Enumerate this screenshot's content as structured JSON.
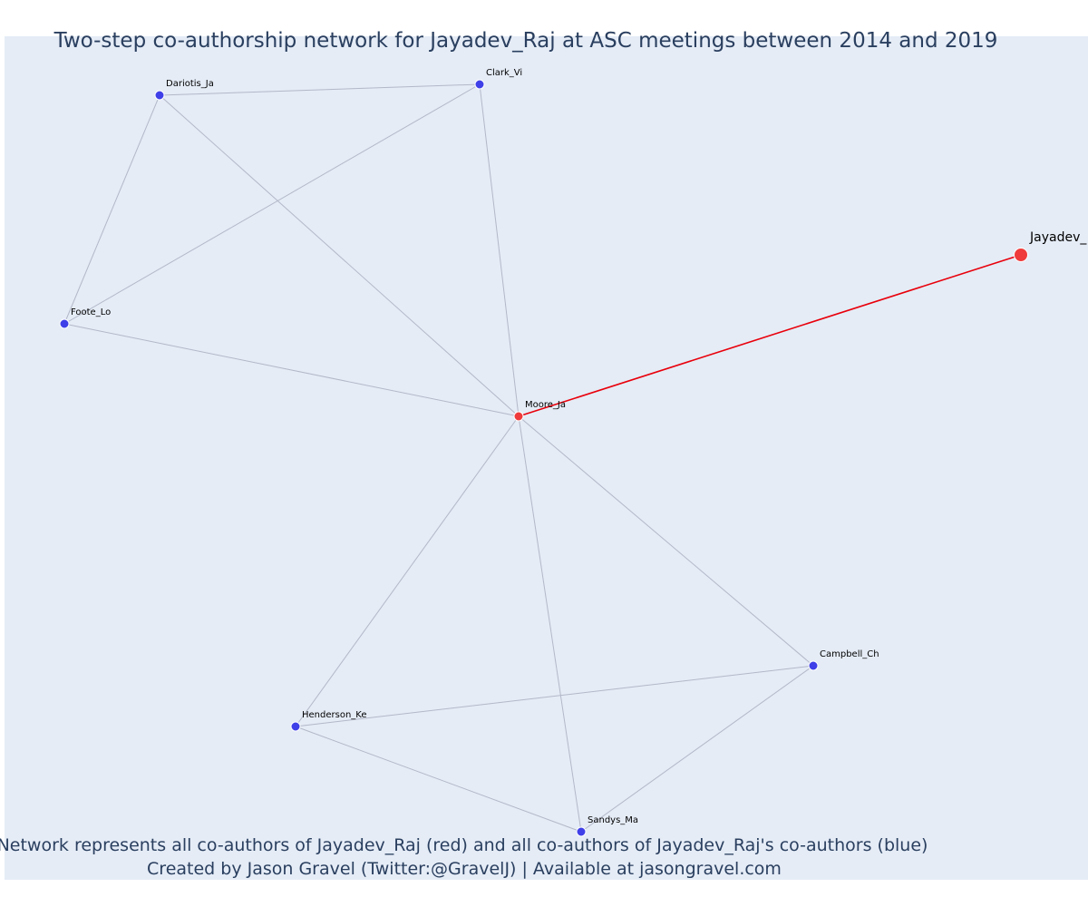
{
  "title": "Two-step co-authorship network for Jayadev_Raj at ASC meetings between 2014 and 2019",
  "caption": {
    "line1": "Network represents all co-authors of Jayadev_Raj (red) and all co-authors of Jayadev_Raj's co-authors (blue)",
    "line2": "Created by Jason Gravel (Twitter:@GravelJ) | Available at jasongravel.com"
  },
  "colors": {
    "background": "#e5ecf6",
    "first_degree": "#ef3b3b",
    "second_degree": "#4040e8",
    "focal_edge": "#e8000b",
    "other_edge": "#b3b8c8"
  },
  "chart_data": {
    "type": "network",
    "nodes": [
      {
        "id": "Jayadev_Raj",
        "label": "Jayadev_",
        "group": "focal"
      },
      {
        "id": "Moore_Ja",
        "label": "Moore_Ja",
        "group": "co-author"
      },
      {
        "id": "Dariotis_Ja",
        "label": "Dariotis_Ja",
        "group": "co-author of co-author"
      },
      {
        "id": "Clark_Vi",
        "label": "Clark_Vi",
        "group": "co-author of co-author"
      },
      {
        "id": "Foote_Lo",
        "label": "Foote_Lo",
        "group": "co-author of co-author"
      },
      {
        "id": "Campbell_Ch",
        "label": "Campbell_Ch",
        "group": "co-author of co-author"
      },
      {
        "id": "Henderson_Ke",
        "label": "Henderson_Ke",
        "group": "co-author of co-author"
      },
      {
        "id": "Sandys_Ma",
        "label": "Sandys_Ma",
        "group": "co-author of co-author"
      }
    ],
    "edges": [
      {
        "source": "Jayadev_Raj",
        "target": "Moore_Ja",
        "type": "focal"
      },
      {
        "source": "Moore_Ja",
        "target": "Dariotis_Ja",
        "type": "other"
      },
      {
        "source": "Moore_Ja",
        "target": "Clark_Vi",
        "type": "other"
      },
      {
        "source": "Moore_Ja",
        "target": "Foote_Lo",
        "type": "other"
      },
      {
        "source": "Moore_Ja",
        "target": "Campbell_Ch",
        "type": "other"
      },
      {
        "source": "Moore_Ja",
        "target": "Henderson_Ke",
        "type": "other"
      },
      {
        "source": "Moore_Ja",
        "target": "Sandys_Ma",
        "type": "other"
      },
      {
        "source": "Dariotis_Ja",
        "target": "Clark_Vi",
        "type": "other"
      },
      {
        "source": "Dariotis_Ja",
        "target": "Foote_Lo",
        "type": "other"
      },
      {
        "source": "Clark_Vi",
        "target": "Foote_Lo",
        "type": "other"
      },
      {
        "source": "Campbell_Ch",
        "target": "Henderson_Ke",
        "type": "other"
      },
      {
        "source": "Campbell_Ch",
        "target": "Sandys_Ma",
        "type": "other"
      },
      {
        "source": "Henderson_Ke",
        "target": "Sandys_Ma",
        "type": "other"
      }
    ]
  }
}
